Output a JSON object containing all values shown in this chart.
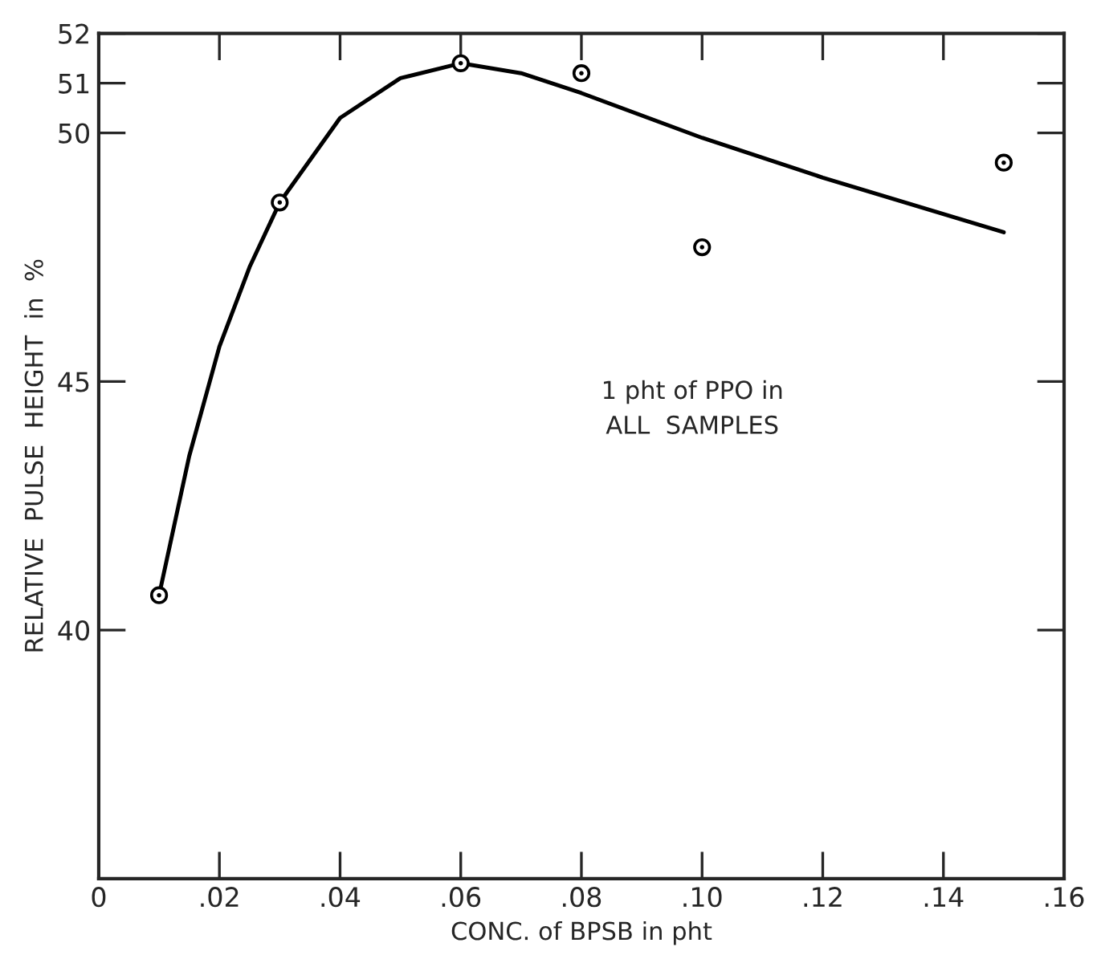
{
  "chart_data": {
    "type": "line",
    "xlabel": "CONC. of BPSB in pht",
    "ylabel": "RELATIVE  PULSE  HEIGHT  in  %",
    "series": [
      {
        "type": "scatter",
        "color": "#000000",
        "marker": "circle",
        "x": [
          0.01,
          0.03,
          0.06,
          0.08,
          0.1,
          0.15
        ],
        "values": [
          40.7,
          48.6,
          51.4,
          51.2,
          47.7,
          49.4
        ]
      },
      {
        "color": "#000000",
        "marker": "none",
        "line_style": "solid",
        "x": [
          0.01,
          0.015,
          0.02,
          0.025,
          0.03,
          0.04,
          0.05,
          0.06,
          0.07,
          0.08,
          0.1,
          0.12,
          0.15
        ],
        "values": [
          40.7,
          43.5,
          45.7,
          47.3,
          48.6,
          50.3,
          51.1,
          51.4,
          51.2,
          50.8,
          49.9,
          49.1,
          48.0
        ]
      }
    ],
    "xlim": [
      0,
      0.16
    ],
    "xticks": [
      {
        "value": 0,
        "label": "0"
      },
      {
        "value": 0.02,
        "label": ".02"
      },
      {
        "value": 0.04,
        "label": ".04"
      },
      {
        "value": 0.06,
        "label": ".06"
      },
      {
        "value": 0.08,
        "label": ".08"
      },
      {
        "value": 0.1,
        "label": ".10"
      },
      {
        "value": 0.12,
        "label": ".12"
      },
      {
        "value": 0.14,
        "label": ".14"
      },
      {
        "value": 0.16,
        "label": ".16"
      }
    ],
    "ylim": [
      35,
      52
    ],
    "yticks": [
      40,
      45,
      50,
      51,
      52
    ],
    "annotations": [
      "1 pht of PPO in\nALL  SAMPLES"
    ],
    "grid": false,
    "legend": false
  }
}
